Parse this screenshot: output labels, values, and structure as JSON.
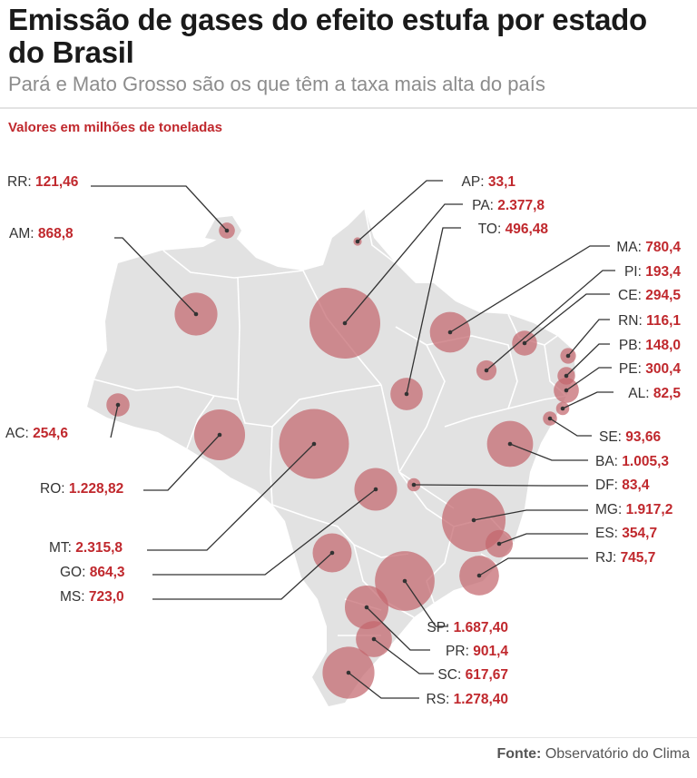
{
  "header": {
    "title": "Emissão de gases do efeito estufa por estado do Brasil",
    "subtitle": "Pará e Mato Grosso são os que têm a taxa mais alta do país",
    "unit_note": "Valores em milhões de toneladas"
  },
  "footer": {
    "source_label": "Fonte:",
    "source_name": "Observatório do Clima"
  },
  "colors": {
    "accent": "#c0282d",
    "map_fill": "#e2e2e2",
    "bubble": "#c4666e"
  },
  "states": [
    {
      "code": "RR",
      "value": "121,46",
      "amount": 121.46
    },
    {
      "code": "AM",
      "value": "868,8",
      "amount": 868.8
    },
    {
      "code": "AC",
      "value": "254,6",
      "amount": 254.6
    },
    {
      "code": "RO",
      "value": "1.228,82",
      "amount": 1228.82
    },
    {
      "code": "MT",
      "value": "2.315,8",
      "amount": 2315.8
    },
    {
      "code": "GO",
      "value": "864,3",
      "amount": 864.3
    },
    {
      "code": "MS",
      "value": "723,0",
      "amount": 723.0
    },
    {
      "code": "AP",
      "value": "33,1",
      "amount": 33.1
    },
    {
      "code": "PA",
      "value": "2.377,8",
      "amount": 2377.8
    },
    {
      "code": "TO",
      "value": "496,48",
      "amount": 496.48
    },
    {
      "code": "MA",
      "value": "780,4",
      "amount": 780.4
    },
    {
      "code": "PI",
      "value": "193,4",
      "amount": 193.4
    },
    {
      "code": "CE",
      "value": "294,5",
      "amount": 294.5
    },
    {
      "code": "RN",
      "value": "116,1",
      "amount": 116.1
    },
    {
      "code": "PB",
      "value": "148,0",
      "amount": 148.0
    },
    {
      "code": "PE",
      "value": "300,4",
      "amount": 300.4
    },
    {
      "code": "AL",
      "value": "82,5",
      "amount": 82.5
    },
    {
      "code": "SE",
      "value": "93,66",
      "amount": 93.66
    },
    {
      "code": "BA",
      "value": "1.005,3",
      "amount": 1005.3
    },
    {
      "code": "DF",
      "value": "83,4",
      "amount": 83.4
    },
    {
      "code": "MG",
      "value": "1.917,2",
      "amount": 1917.2
    },
    {
      "code": "ES",
      "value": "354,7",
      "amount": 354.7
    },
    {
      "code": "RJ",
      "value": "745,7",
      "amount": 745.7
    },
    {
      "code": "SP",
      "value": "1.687,40",
      "amount": 1687.4
    },
    {
      "code": "PR",
      "value": "901,4",
      "amount": 901.4
    },
    {
      "code": "SC",
      "value": "617,67",
      "amount": 617.67
    },
    {
      "code": "RS",
      "value": "1.278,40",
      "amount": 1278.4
    }
  ]
}
